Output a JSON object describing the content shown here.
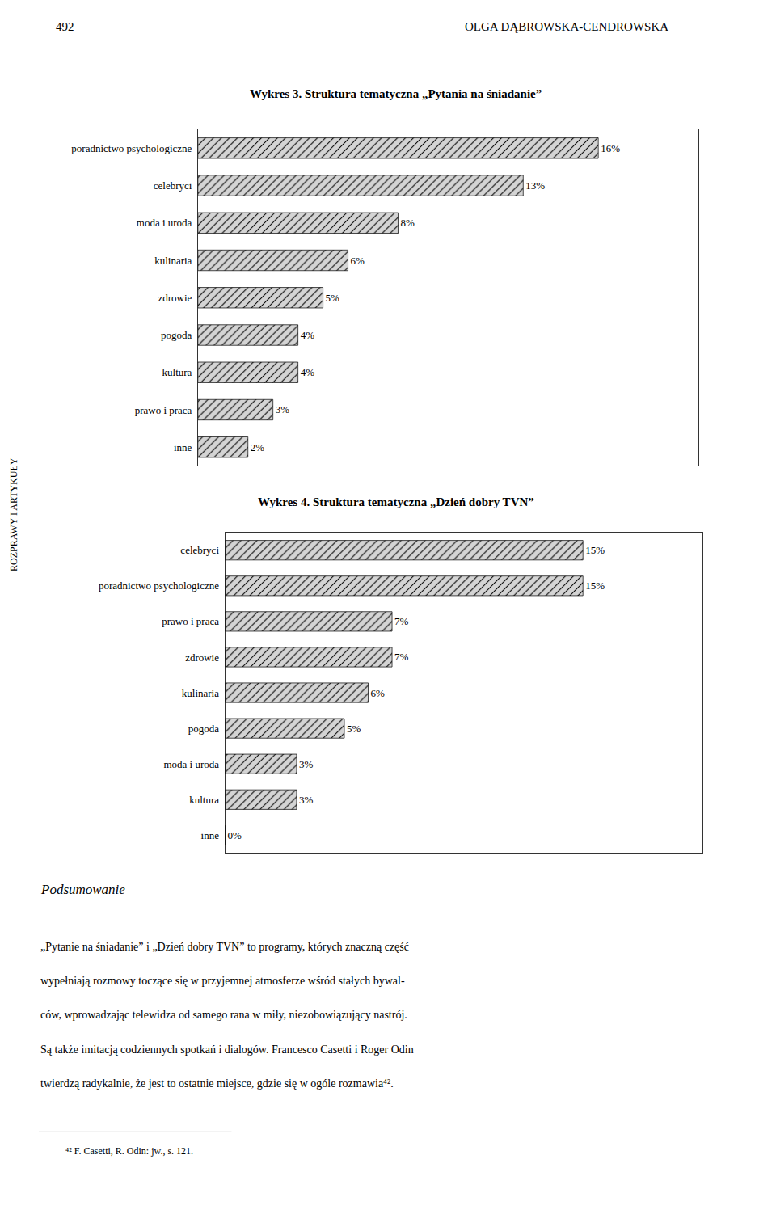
{
  "annotations": [
    "492",
    "OLGA DĄBROWSKA-CENDROWSKA",
    "ROZPRAWY I ARTYKUŁY",
    "Podsumowanie",
    "„Pytanie na śniadanie” i „Dzień dobry TVN” to programy, których znaczną część",
    "wypełniają rozmowy toczące się w przyjemnej atmosferze wśród stałych bywal-",
    "ców, wprowadzając telewidza od samego rana w miły, niezobowiązujący nastrój.",
    "Są także imitacją codziennych spotkań i dialogów. Francesco Casetti i Roger Odin",
    "twierdzą radykalnie, że jest to ostatnie miejsce, gdzie się w ogóle rozmawia⁴².",
    "⁴² F. Casetti, R. Odin: jw., s. 121."
  ],
  "chart_data": [
    {
      "type": "bar",
      "orientation": "horizontal",
      "title": "Wykres 3. Struktura tematyczna „Pytania na śniadanie”",
      "categories": [
        "poradnictwo psychologiczne",
        "celebryci",
        "moda i uroda",
        "kulinaria",
        "zdrowie",
        "pogoda",
        "kultura",
        "prawo i praca",
        "inne"
      ],
      "values": [
        16,
        13,
        8,
        6,
        5,
        4,
        4,
        3,
        2
      ],
      "value_labels": [
        "16%",
        "13%",
        "8%",
        "6%",
        "5%",
        "4%",
        "4%",
        "3%",
        "2%"
      ],
      "data_labels": true,
      "color": "#d4d4d4",
      "xlim": [
        0,
        20
      ],
      "tick_labels": "y",
      "grid": false
    },
    {
      "type": "bar",
      "orientation": "horizontal",
      "title": "Wykres 4. Struktura tematyczna „Dzień dobry TVN”",
      "categories": [
        "celebryci",
        "poradnictwo psychologiczne",
        "prawo i praca",
        "zdrowie",
        "kulinaria",
        "pogoda",
        "moda i uroda",
        "kultura",
        "inne"
      ],
      "values": [
        15,
        15,
        7,
        7,
        6,
        5,
        3,
        3,
        0
      ],
      "value_labels": [
        "15%",
        "15%",
        "7%",
        "7%",
        "6%",
        "5%",
        "3%",
        "3%",
        "0%"
      ],
      "data_labels": true,
      "color": "#d4d4d4",
      "xlim": [
        0,
        20
      ],
      "tick_labels": "y",
      "grid": false
    }
  ]
}
